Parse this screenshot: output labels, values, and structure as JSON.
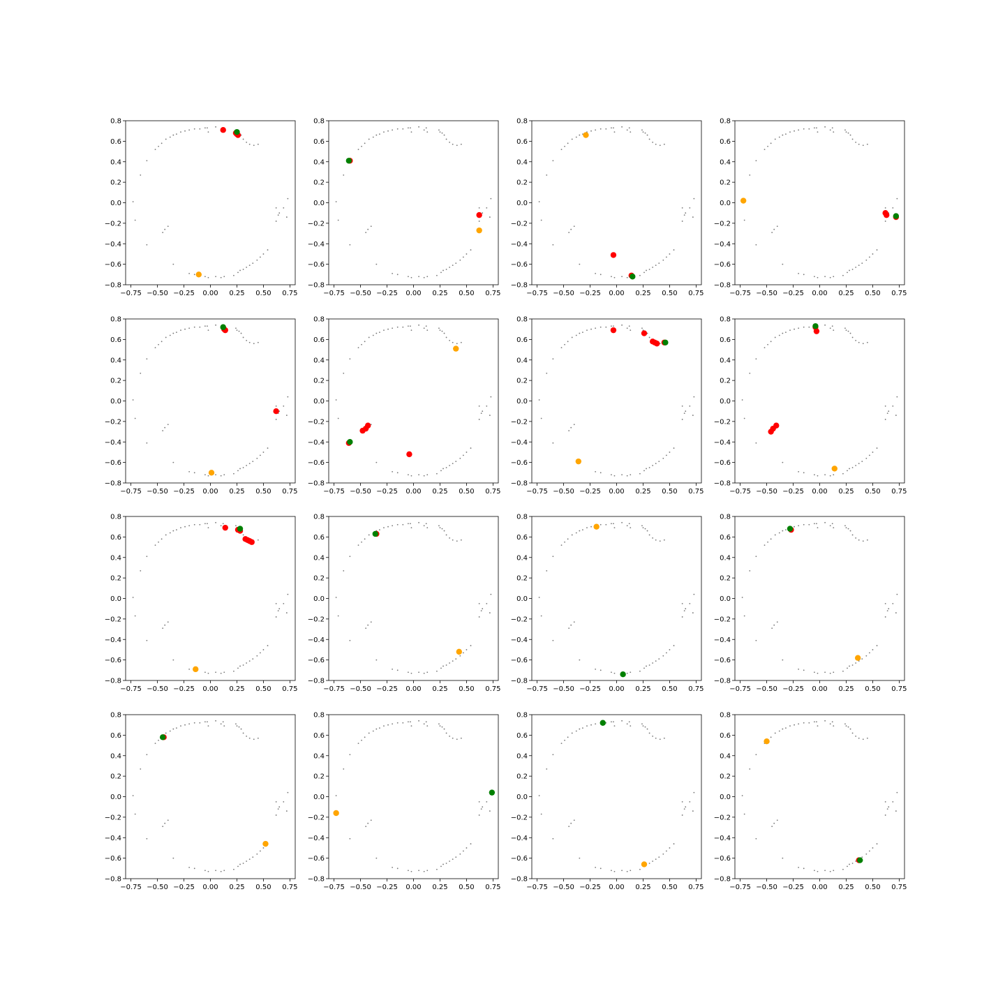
{
  "colors": {
    "background_points": "#555555",
    "red_points": "#ff0000",
    "green_point": "#008000",
    "orange_point": "#ffa500"
  },
  "chart_data": {
    "type": "scatter",
    "grid": false,
    "layout": "4x4 grid of subplots",
    "xlim": [
      -0.8,
      0.8
    ],
    "ylim": [
      -0.8,
      0.8
    ],
    "xticks": [
      -0.75,
      -0.5,
      -0.25,
      0.0,
      0.25,
      0.5,
      0.75
    ],
    "xtick_labels": [
      "−0.75",
      "−0.50",
      "−0.25",
      "0.00",
      "0.25",
      "0.50",
      "0.75"
    ],
    "yticks": [
      -0.8,
      -0.6,
      -0.4,
      -0.2,
      0.0,
      0.2,
      0.4,
      0.6,
      0.8
    ],
    "ytick_labels": [
      "−0.8",
      "−0.6",
      "−0.4",
      "−0.2",
      "0.0",
      "0.2",
      "0.4",
      "0.6",
      "0.8"
    ],
    "background_points": [
      [
        -0.05,
        0.73
      ],
      [
        -0.03,
        0.73
      ],
      [
        -0.02,
        0.69
      ],
      [
        -0.1,
        0.72
      ],
      [
        -0.15,
        0.72
      ],
      [
        -0.2,
        0.71
      ],
      [
        -0.24,
        0.7
      ],
      [
        -0.28,
        0.69
      ],
      [
        -0.32,
        0.67
      ],
      [
        -0.35,
        0.66
      ],
      [
        -0.38,
        0.64
      ],
      [
        -0.42,
        0.62
      ],
      [
        -0.46,
        0.58
      ],
      [
        -0.49,
        0.55
      ],
      [
        -0.52,
        0.52
      ],
      [
        -0.6,
        0.41
      ],
      [
        -0.66,
        0.27
      ],
      [
        -0.73,
        0.01
      ],
      [
        -0.71,
        -0.17
      ],
      [
        -0.6,
        -0.41
      ],
      [
        -0.45,
        -0.29
      ],
      [
        -0.43,
        -0.26
      ],
      [
        -0.4,
        -0.23
      ],
      [
        -0.35,
        -0.6
      ],
      [
        -0.2,
        -0.69
      ],
      [
        -0.15,
        -0.7
      ],
      [
        -0.05,
        -0.72
      ],
      [
        -0.02,
        -0.73
      ],
      [
        0.05,
        -0.72
      ],
      [
        0.1,
        -0.73
      ],
      [
        0.13,
        -0.72
      ],
      [
        0.22,
        -0.71
      ],
      [
        0.26,
        -0.68
      ],
      [
        0.28,
        -0.66
      ],
      [
        0.31,
        -0.65
      ],
      [
        0.34,
        -0.63
      ],
      [
        0.37,
        -0.61
      ],
      [
        0.4,
        -0.59
      ],
      [
        0.44,
        -0.56
      ],
      [
        0.47,
        -0.53
      ],
      [
        0.5,
        -0.5
      ],
      [
        0.54,
        -0.46
      ],
      [
        0.62,
        -0.18
      ],
      [
        0.64,
        -0.12
      ],
      [
        0.65,
        -0.1
      ],
      [
        0.72,
        -0.14
      ],
      [
        0.73,
        0.04
      ],
      [
        0.69,
        -0.05
      ],
      [
        0.62,
        -0.05
      ],
      [
        0.45,
        0.57
      ],
      [
        0.41,
        0.56
      ],
      [
        0.37,
        0.57
      ],
      [
        0.34,
        0.59
      ],
      [
        0.31,
        0.62
      ],
      [
        0.29,
        0.66
      ],
      [
        0.27,
        0.68
      ],
      [
        0.25,
        0.69
      ],
      [
        0.24,
        0.71
      ],
      [
        0.12,
        0.73
      ],
      [
        0.1,
        0.71
      ],
      [
        0.05,
        0.74
      ],
      [
        0.13,
        0.69
      ]
    ],
    "subplots": [
      {
        "red": [
          [
            0.12,
            0.71
          ],
          [
            0.25,
            0.67
          ],
          [
            0.26,
            0.66
          ],
          [
            0.24,
            0.68
          ]
        ],
        "green": [
          [
            0.25,
            0.69
          ]
        ],
        "orange": [
          [
            -0.11,
            -0.7
          ]
        ]
      },
      {
        "red": [
          [
            -0.6,
            0.41
          ],
          [
            0.62,
            -0.12
          ]
        ],
        "green": [
          [
            -0.61,
            0.41
          ]
        ],
        "orange": [
          [
            0.62,
            -0.27
          ]
        ]
      },
      {
        "red": [
          [
            -0.03,
            -0.51
          ],
          [
            0.14,
            -0.71
          ]
        ],
        "green": [
          [
            0.15,
            -0.72
          ]
        ],
        "orange": [
          [
            -0.29,
            0.66
          ]
        ]
      },
      {
        "red": [
          [
            0.62,
            -0.1
          ],
          [
            0.63,
            -0.12
          ],
          [
            0.72,
            -0.14
          ]
        ],
        "green": [
          [
            0.72,
            -0.13
          ]
        ],
        "orange": [
          [
            -0.72,
            0.02
          ]
        ]
      },
      {
        "red": [
          [
            0.13,
            0.7
          ],
          [
            0.14,
            0.69
          ],
          [
            0.62,
            -0.1
          ]
        ],
        "green": [
          [
            0.12,
            0.72
          ]
        ],
        "orange": [
          [
            0.01,
            -0.7
          ]
        ]
      },
      {
        "red": [
          [
            -0.61,
            -0.41
          ],
          [
            -0.48,
            -0.29
          ],
          [
            -0.45,
            -0.27
          ],
          [
            -0.43,
            -0.24
          ],
          [
            -0.04,
            -0.52
          ]
        ],
        "green": [
          [
            -0.6,
            -0.4
          ]
        ],
        "orange": [
          [
            0.4,
            0.51
          ]
        ]
      },
      {
        "red": [
          [
            -0.03,
            0.69
          ],
          [
            0.26,
            0.66
          ],
          [
            0.34,
            0.58
          ],
          [
            0.36,
            0.57
          ],
          [
            0.38,
            0.56
          ],
          [
            0.45,
            0.57
          ]
        ],
        "green": [
          [
            0.46,
            0.57
          ]
        ],
        "orange": [
          [
            -0.36,
            -0.59
          ]
        ]
      },
      {
        "red": [
          [
            -0.03,
            0.68
          ],
          [
            -0.46,
            -0.3
          ],
          [
            -0.44,
            -0.27
          ],
          [
            -0.41,
            -0.24
          ],
          [
            -0.04,
            0.72
          ]
        ],
        "green": [
          [
            -0.04,
            0.73
          ]
        ],
        "orange": [
          [
            0.14,
            -0.66
          ]
        ]
      },
      {
        "red": [
          [
            0.14,
            0.69
          ],
          [
            0.26,
            0.67
          ],
          [
            0.28,
            0.66
          ],
          [
            0.33,
            0.58
          ],
          [
            0.35,
            0.57
          ],
          [
            0.37,
            0.56
          ],
          [
            0.39,
            0.55
          ]
        ],
        "green": [
          [
            0.28,
            0.68
          ]
        ],
        "orange": [
          [
            -0.14,
            -0.69
          ]
        ]
      },
      {
        "red": [
          [
            -0.35,
            0.63
          ]
        ],
        "green": [
          [
            -0.36,
            0.63
          ]
        ],
        "orange": [
          [
            0.43,
            -0.52
          ]
        ]
      },
      {
        "red": [],
        "green": [
          [
            0.06,
            -0.74
          ]
        ],
        "orange": [
          [
            -0.19,
            0.7
          ]
        ]
      },
      {
        "red": [
          [
            -0.27,
            0.67
          ]
        ],
        "green": [
          [
            -0.28,
            0.68
          ]
        ],
        "orange": [
          [
            0.36,
            -0.58
          ]
        ]
      },
      {
        "red": [
          [
            -0.44,
            0.58
          ]
        ],
        "green": [
          [
            -0.45,
            0.58
          ]
        ],
        "orange": [
          [
            0.52,
            -0.46
          ]
        ]
      },
      {
        "red": [],
        "green": [
          [
            0.74,
            0.04
          ]
        ],
        "orange": [
          [
            -0.73,
            -0.16
          ]
        ]
      },
      {
        "red": [],
        "green": [
          [
            -0.13,
            0.72
          ]
        ],
        "orange": [
          [
            0.26,
            -0.66
          ]
        ]
      },
      {
        "red": [
          [
            0.37,
            -0.62
          ]
        ],
        "green": [
          [
            0.38,
            -0.62
          ]
        ],
        "orange": [
          [
            -0.5,
            0.54
          ]
        ]
      }
    ]
  }
}
